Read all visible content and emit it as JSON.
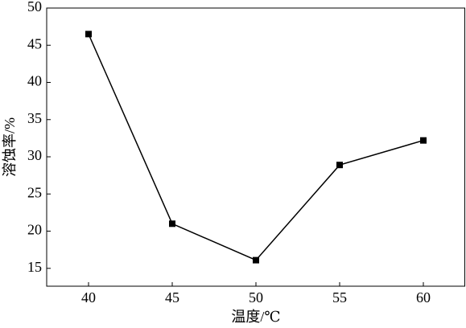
{
  "chart_data": {
    "type": "line",
    "x_label": "温度/℃",
    "y_label": "溶蚀率/%",
    "x": [
      40,
      45,
      50,
      55,
      60
    ],
    "series": [
      {
        "values": [
          46.5,
          21,
          16.1,
          28.9,
          32.2
        ],
        "color": "#000000"
      }
    ],
    "xlim": [
      37.5,
      62.5
    ],
    "xticks": [
      40,
      45,
      50,
      55,
      60
    ],
    "ylim": [
      12.6,
      50
    ],
    "yticks": [
      15,
      20,
      25,
      30,
      35,
      40,
      45,
      50
    ]
  }
}
